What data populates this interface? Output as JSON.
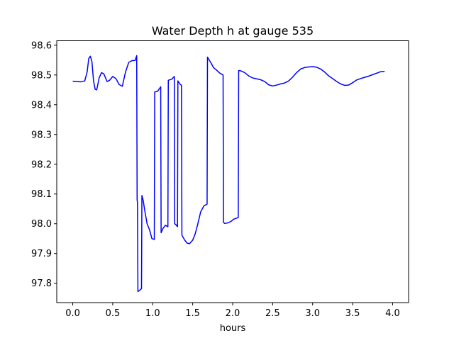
{
  "chart_data": {
    "type": "line",
    "title": "Water Depth h at gauge 535",
    "xlabel": "hours",
    "ylabel": "",
    "xlim": [
      -0.2,
      4.2
    ],
    "ylim": [
      97.735,
      98.615
    ],
    "xticks": [
      0.0,
      0.5,
      1.0,
      1.5,
      2.0,
      2.5,
      3.0,
      3.5,
      4.0
    ],
    "xtick_labels": [
      "0.0",
      "0.5",
      "1.0",
      "1.5",
      "2.0",
      "2.5",
      "3.0",
      "3.5",
      "4.0"
    ],
    "yticks": [
      97.8,
      97.9,
      98.0,
      98.1,
      98.2,
      98.3,
      98.4,
      98.5,
      98.6
    ],
    "ytick_labels": [
      "97.8",
      "97.9",
      "98.0",
      "98.1",
      "98.2",
      "98.3",
      "98.4",
      "98.5",
      "98.6"
    ],
    "grid": false,
    "series": [
      {
        "name": "",
        "color": "#0000ff",
        "points": [
          [
            0.0,
            98.479
          ],
          [
            0.05,
            98.478
          ],
          [
            0.1,
            98.477
          ],
          [
            0.15,
            98.48
          ],
          [
            0.18,
            98.51
          ],
          [
            0.2,
            98.555
          ],
          [
            0.22,
            98.563
          ],
          [
            0.24,
            98.545
          ],
          [
            0.26,
            98.48
          ],
          [
            0.28,
            98.452
          ],
          [
            0.3,
            98.45
          ],
          [
            0.33,
            98.49
          ],
          [
            0.36,
            98.508
          ],
          [
            0.39,
            98.503
          ],
          [
            0.43,
            98.478
          ],
          [
            0.46,
            98.482
          ],
          [
            0.5,
            98.495
          ],
          [
            0.54,
            98.488
          ],
          [
            0.58,
            98.468
          ],
          [
            0.62,
            98.462
          ],
          [
            0.66,
            98.51
          ],
          [
            0.7,
            98.542
          ],
          [
            0.74,
            98.548
          ],
          [
            0.78,
            98.549
          ],
          [
            0.8,
            98.565
          ],
          [
            0.805,
            98.08
          ],
          [
            0.81,
            98.072
          ],
          [
            0.815,
            97.772
          ],
          [
            0.83,
            97.775
          ],
          [
            0.86,
            97.782
          ],
          [
            0.865,
            98.095
          ],
          [
            0.88,
            98.08
          ],
          [
            0.9,
            98.045
          ],
          [
            0.93,
            98.0
          ],
          [
            0.96,
            97.98
          ],
          [
            0.99,
            97.95
          ],
          [
            1.02,
            97.947
          ],
          [
            1.025,
            98.443
          ],
          [
            1.06,
            98.445
          ],
          [
            1.1,
            98.46
          ],
          [
            1.105,
            97.97
          ],
          [
            1.13,
            97.985
          ],
          [
            1.16,
            97.995
          ],
          [
            1.19,
            97.99
          ],
          [
            1.195,
            98.482
          ],
          [
            1.24,
            98.486
          ],
          [
            1.27,
            98.495
          ],
          [
            1.275,
            98.0
          ],
          [
            1.29,
            97.997
          ],
          [
            1.31,
            97.99
          ],
          [
            1.315,
            98.48
          ],
          [
            1.34,
            98.47
          ],
          [
            1.36,
            98.465
          ],
          [
            1.365,
            97.962
          ],
          [
            1.4,
            97.945
          ],
          [
            1.43,
            97.935
          ],
          [
            1.46,
            97.933
          ],
          [
            1.5,
            97.945
          ],
          [
            1.53,
            97.965
          ],
          [
            1.56,
            97.995
          ],
          [
            1.6,
            98.04
          ],
          [
            1.64,
            98.06
          ],
          [
            1.68,
            98.066
          ],
          [
            1.685,
            98.56
          ],
          [
            1.7,
            98.553
          ],
          [
            1.73,
            98.54
          ],
          [
            1.76,
            98.525
          ],
          [
            1.8,
            98.516
          ],
          [
            1.84,
            98.506
          ],
          [
            1.88,
            98.5
          ],
          [
            1.885,
            98.005
          ],
          [
            1.9,
            98.001
          ],
          [
            1.94,
            98.003
          ],
          [
            1.98,
            98.008
          ],
          [
            2.01,
            98.015
          ],
          [
            2.04,
            98.018
          ],
          [
            2.07,
            98.021
          ],
          [
            2.075,
            98.515
          ],
          [
            2.1,
            98.514
          ],
          [
            2.15,
            98.508
          ],
          [
            2.2,
            98.497
          ],
          [
            2.25,
            98.49
          ],
          [
            2.3,
            98.487
          ],
          [
            2.35,
            98.484
          ],
          [
            2.4,
            98.478
          ],
          [
            2.45,
            98.467
          ],
          [
            2.5,
            98.463
          ],
          [
            2.55,
            98.466
          ],
          [
            2.6,
            98.47
          ],
          [
            2.65,
            98.473
          ],
          [
            2.7,
            98.48
          ],
          [
            2.75,
            98.493
          ],
          [
            2.8,
            98.508
          ],
          [
            2.85,
            98.52
          ],
          [
            2.9,
            98.525
          ],
          [
            2.95,
            98.527
          ],
          [
            3.0,
            98.528
          ],
          [
            3.05,
            98.526
          ],
          [
            3.1,
            98.52
          ],
          [
            3.15,
            98.51
          ],
          [
            3.2,
            98.497
          ],
          [
            3.25,
            98.488
          ],
          [
            3.3,
            98.478
          ],
          [
            3.35,
            98.47
          ],
          [
            3.4,
            98.465
          ],
          [
            3.45,
            98.466
          ],
          [
            3.5,
            98.474
          ],
          [
            3.55,
            98.483
          ],
          [
            3.6,
            98.488
          ],
          [
            3.65,
            98.492
          ],
          [
            3.7,
            98.496
          ],
          [
            3.75,
            98.501
          ],
          [
            3.8,
            98.506
          ],
          [
            3.85,
            98.511
          ],
          [
            3.9,
            98.512
          ]
        ]
      }
    ]
  }
}
